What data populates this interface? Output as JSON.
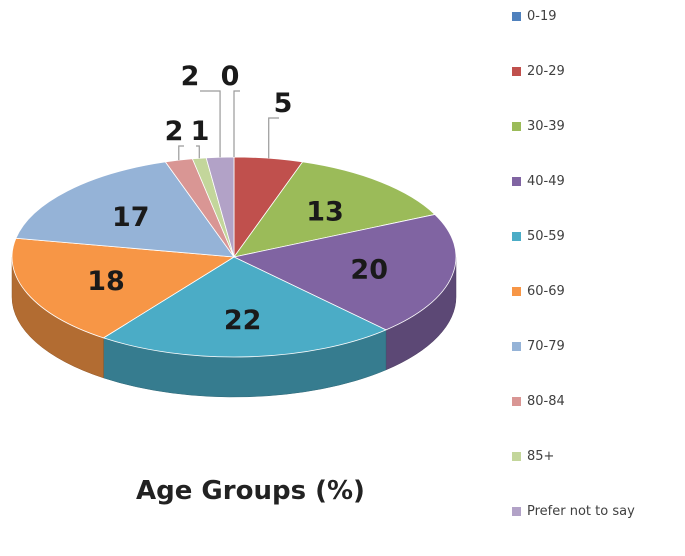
{
  "chart_data": {
    "type": "pie",
    "title": "Age Groups (%)",
    "categories": [
      "0-19",
      "20-29",
      "30-39",
      "40-49",
      "50-59",
      "60-69",
      "70-79",
      "80-84",
      "85+",
      "Prefer not to say"
    ],
    "values": [
      0,
      5,
      13,
      20,
      22,
      18,
      17,
      2,
      1,
      2
    ],
    "colors": [
      "#4F81BD",
      "#C0504D",
      "#9BBB59",
      "#8064A2",
      "#4BACC6",
      "#F79646",
      "#95B3D7",
      "#D99694",
      "#C3D69B",
      "#B2A2C7"
    ],
    "legend_position": "right",
    "style": "3d-exploded-pie"
  }
}
